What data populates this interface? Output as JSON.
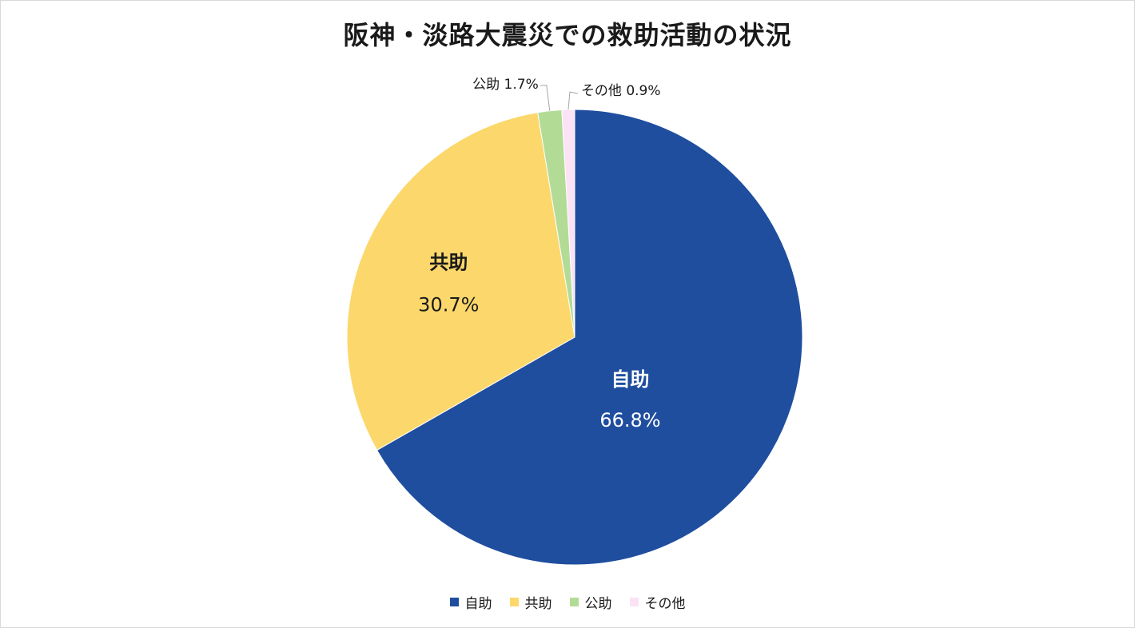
{
  "chart_data": {
    "type": "pie",
    "title": "阪神・淡路大震災での救助活動の状況",
    "categories": [
      "自助",
      "共助",
      "公助",
      "その他"
    ],
    "values": [
      66.8,
      30.7,
      1.7,
      0.9
    ],
    "value_labels": [
      "66.8%",
      "30.7%",
      "1.7%",
      "0.9%"
    ],
    "colors": [
      "#1f4e9f",
      "#fcd76b",
      "#b2dc96",
      "#fbe3f5"
    ],
    "start_angle_deg": 0,
    "direction": "clockwise",
    "legend_position": "bottom"
  }
}
